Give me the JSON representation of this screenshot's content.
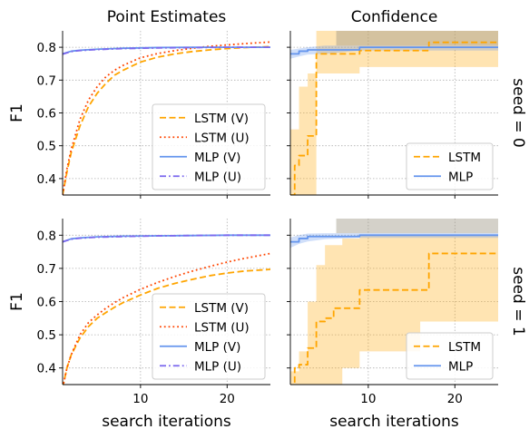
{
  "chart_data": [
    {
      "id": "p00",
      "type": "line",
      "title": "Point Estimates",
      "ylabel": "F1",
      "xlabel": "",
      "xlim": [
        1,
        25
      ],
      "ylim": [
        0.35,
        0.85
      ],
      "xticks": [
        10,
        20
      ],
      "xtick_labels": [
        "",
        ""
      ],
      "yticks": [
        0.4,
        0.5,
        0.6,
        0.7,
        0.8
      ],
      "ytick_labels": [
        "0.4",
        "0.5",
        "0.6",
        "0.7",
        "0.8"
      ],
      "grid": true,
      "legend_position": "lower-right",
      "series": [
        {
          "name": "LSTM (V)",
          "color": "#ffa500",
          "dash": "dashed",
          "x": [
            1,
            1.5,
            2,
            3,
            4,
            5,
            6,
            7,
            8,
            10,
            12,
            14,
            16,
            18,
            20,
            22,
            25
          ],
          "y": [
            0.35,
            0.42,
            0.48,
            0.56,
            0.62,
            0.66,
            0.69,
            0.715,
            0.73,
            0.755,
            0.77,
            0.78,
            0.787,
            0.792,
            0.796,
            0.799,
            0.802
          ]
        },
        {
          "name": "LSTM (U)",
          "color": "#ff4500",
          "dash": "dotted",
          "x": [
            1,
            1.5,
            2,
            3,
            4,
            5,
            6,
            7,
            8,
            10,
            12,
            14,
            16,
            18,
            20,
            22,
            25
          ],
          "y": [
            0.35,
            0.43,
            0.49,
            0.58,
            0.64,
            0.68,
            0.71,
            0.73,
            0.745,
            0.768,
            0.781,
            0.79,
            0.797,
            0.803,
            0.807,
            0.811,
            0.816
          ]
        },
        {
          "name": "MLP (V)",
          "color": "#6495ed",
          "dash": "solid",
          "x": [
            1,
            2,
            3,
            5,
            8,
            12,
            16,
            20,
            25
          ],
          "y": [
            0.78,
            0.788,
            0.791,
            0.794,
            0.797,
            0.799,
            0.8,
            0.8,
            0.8
          ]
        },
        {
          "name": "MLP (U)",
          "color": "#7b68ee",
          "dash": "dashdot",
          "x": [
            1,
            2,
            3,
            5,
            8,
            12,
            16,
            20,
            25
          ],
          "y": [
            0.779,
            0.787,
            0.79,
            0.793,
            0.796,
            0.798,
            0.799,
            0.8,
            0.8
          ]
        }
      ]
    },
    {
      "id": "p01",
      "type": "line",
      "title": "Confidence",
      "ylabel": "",
      "xlabel": "",
      "side_label": "seed = 0",
      "xlim": [
        1,
        25
      ],
      "ylim": [
        0.35,
        0.85
      ],
      "xticks": [
        10,
        20
      ],
      "xtick_labels": [
        "",
        ""
      ],
      "yticks": [
        0.4,
        0.5,
        0.6,
        0.7,
        0.8
      ],
      "ytick_labels": [
        "",
        "",
        "",
        "",
        ""
      ],
      "grid": true,
      "legend_position": "lower-right",
      "bands": [
        {
          "name": "LSTM band",
          "color": "#ffa500",
          "opacity": 0.3,
          "x": [
            1,
            2,
            2,
            3,
            3,
            4,
            4,
            9,
            9,
            16,
            16,
            25
          ],
          "lower": [
            0.33,
            0.33,
            0.33,
            0.33,
            0.33,
            0.33,
            0.72,
            0.72,
            0.74,
            0.74,
            0.74,
            0.74
          ],
          "upper": [
            0.55,
            0.55,
            0.68,
            0.68,
            0.72,
            0.72,
            0.86,
            0.86,
            0.86,
            0.86,
            0.86,
            0.86
          ]
        },
        {
          "name": "MLP band",
          "color": "#6495ed",
          "opacity": 0.3,
          "x": [
            1,
            2,
            3,
            5,
            9,
            25
          ],
          "lower": [
            0.765,
            0.772,
            0.778,
            0.78,
            0.79,
            0.79
          ],
          "upper": [
            0.792,
            0.796,
            0.8,
            0.805,
            0.805,
            0.805
          ]
        },
        {
          "name": "overlap band",
          "color": "#a09a88",
          "opacity": 0.45,
          "x": [
            6.3,
            25
          ],
          "lower": [
            0.805,
            0.805
          ],
          "upper": [
            0.86,
            0.86
          ]
        }
      ],
      "series": [
        {
          "name": "LSTM",
          "color": "#ffa500",
          "dash": "dashed",
          "step": true,
          "x": [
            1,
            1.5,
            2,
            3,
            4,
            9,
            17,
            25
          ],
          "y": [
            0.35,
            0.44,
            0.47,
            0.53,
            0.78,
            0.79,
            0.815,
            0.815
          ]
        },
        {
          "name": "MLP",
          "color": "#6495ed",
          "dash": "solid",
          "step": true,
          "x": [
            1,
            2,
            3,
            9,
            25
          ],
          "y": [
            0.78,
            0.788,
            0.792,
            0.8,
            0.8
          ]
        }
      ]
    },
    {
      "id": "p10",
      "type": "line",
      "title": "",
      "ylabel": "F1",
      "xlabel": "search iterations",
      "xlim": [
        1,
        25
      ],
      "ylim": [
        0.35,
        0.85
      ],
      "xticks": [
        10,
        20
      ],
      "xtick_labels": [
        "10",
        "20"
      ],
      "yticks": [
        0.4,
        0.5,
        0.6,
        0.7,
        0.8
      ],
      "ytick_labels": [
        "0.4",
        "0.5",
        "0.6",
        "0.7",
        "0.8"
      ],
      "grid": true,
      "legend_position": "lower-right",
      "series": [
        {
          "name": "LSTM (V)",
          "color": "#ffa500",
          "dash": "dashed",
          "x": [
            1,
            1.5,
            2,
            3,
            4,
            5,
            6,
            7,
            8,
            10,
            12,
            14,
            16,
            18,
            20,
            22,
            25
          ],
          "y": [
            0.34,
            0.4,
            0.44,
            0.49,
            0.525,
            0.55,
            0.567,
            0.583,
            0.597,
            0.62,
            0.64,
            0.655,
            0.667,
            0.678,
            0.686,
            0.692,
            0.697
          ]
        },
        {
          "name": "LSTM (U)",
          "color": "#ff4500",
          "dash": "dotted",
          "x": [
            1,
            1.5,
            2,
            3,
            4,
            5,
            6,
            7,
            8,
            10,
            12,
            14,
            16,
            18,
            20,
            22,
            25
          ],
          "y": [
            0.34,
            0.4,
            0.44,
            0.5,
            0.537,
            0.56,
            0.58,
            0.597,
            0.612,
            0.637,
            0.658,
            0.676,
            0.692,
            0.706,
            0.719,
            0.73,
            0.745
          ]
        },
        {
          "name": "MLP (V)",
          "color": "#6495ed",
          "dash": "solid",
          "x": [
            1,
            2,
            3,
            5,
            8,
            12,
            16,
            20,
            25
          ],
          "y": [
            0.78,
            0.789,
            0.792,
            0.795,
            0.797,
            0.798,
            0.799,
            0.8,
            0.8
          ]
        },
        {
          "name": "MLP (U)",
          "color": "#7b68ee",
          "dash": "dashdot",
          "x": [
            1,
            2,
            3,
            5,
            8,
            12,
            16,
            20,
            25
          ],
          "y": [
            0.78,
            0.788,
            0.791,
            0.794,
            0.796,
            0.798,
            0.799,
            0.8,
            0.8
          ]
        }
      ]
    },
    {
      "id": "p11",
      "type": "line",
      "title": "",
      "ylabel": "",
      "xlabel": "search iterations",
      "side_label": "seed = 1",
      "xlim": [
        1,
        25
      ],
      "ylim": [
        0.35,
        0.85
      ],
      "xticks": [
        10,
        20
      ],
      "xtick_labels": [
        "10",
        "20"
      ],
      "yticks": [
        0.4,
        0.5,
        0.6,
        0.7,
        0.8
      ],
      "ytick_labels": [
        "",
        "",
        "",
        "",
        ""
      ],
      "grid": true,
      "legend_position": "lower-right",
      "bands": [
        {
          "name": "LSTM band",
          "color": "#ffa500",
          "opacity": 0.3,
          "x": [
            1,
            2,
            2,
            3,
            3,
            4,
            4,
            5,
            5,
            7,
            7,
            9,
            9,
            16,
            16,
            25
          ],
          "lower": [
            0.33,
            0.33,
            0.33,
            0.33,
            0.33,
            0.33,
            0.33,
            0.33,
            0.35,
            0.35,
            0.4,
            0.4,
            0.45,
            0.45,
            0.54,
            0.54
          ],
          "upper": [
            0.39,
            0.39,
            0.45,
            0.45,
            0.6,
            0.6,
            0.71,
            0.71,
            0.77,
            0.77,
            0.79,
            0.79,
            0.8,
            0.8,
            0.8,
            0.8
          ]
        },
        {
          "name": "MLP band",
          "color": "#6495ed",
          "opacity": 0.3,
          "x": [
            1,
            2,
            3,
            5,
            9,
            25
          ],
          "lower": [
            0.762,
            0.774,
            0.781,
            0.788,
            0.792,
            0.792
          ],
          "upper": [
            0.793,
            0.8,
            0.805,
            0.806,
            0.806,
            0.806
          ]
        },
        {
          "name": "overlap band",
          "color": "#a09a88",
          "opacity": 0.45,
          "x": [
            6.3,
            25
          ],
          "lower": [
            0.806,
            0.806
          ],
          "upper": [
            0.86,
            0.86
          ]
        }
      ],
      "series": [
        {
          "name": "LSTM",
          "color": "#ffa500",
          "dash": "dashed",
          "step": true,
          "x": [
            1,
            1.5,
            2,
            3,
            4,
            5,
            6,
            7,
            9,
            16,
            17,
            25
          ],
          "y": [
            0.34,
            0.4,
            0.41,
            0.46,
            0.54,
            0.55,
            0.58,
            0.58,
            0.635,
            0.635,
            0.745,
            0.745
          ]
        },
        {
          "name": "MLP",
          "color": "#6495ed",
          "dash": "solid",
          "step": true,
          "x": [
            1,
            2,
            3,
            9,
            25
          ],
          "y": [
            0.78,
            0.79,
            0.796,
            0.8,
            0.8
          ]
        }
      ]
    }
  ]
}
